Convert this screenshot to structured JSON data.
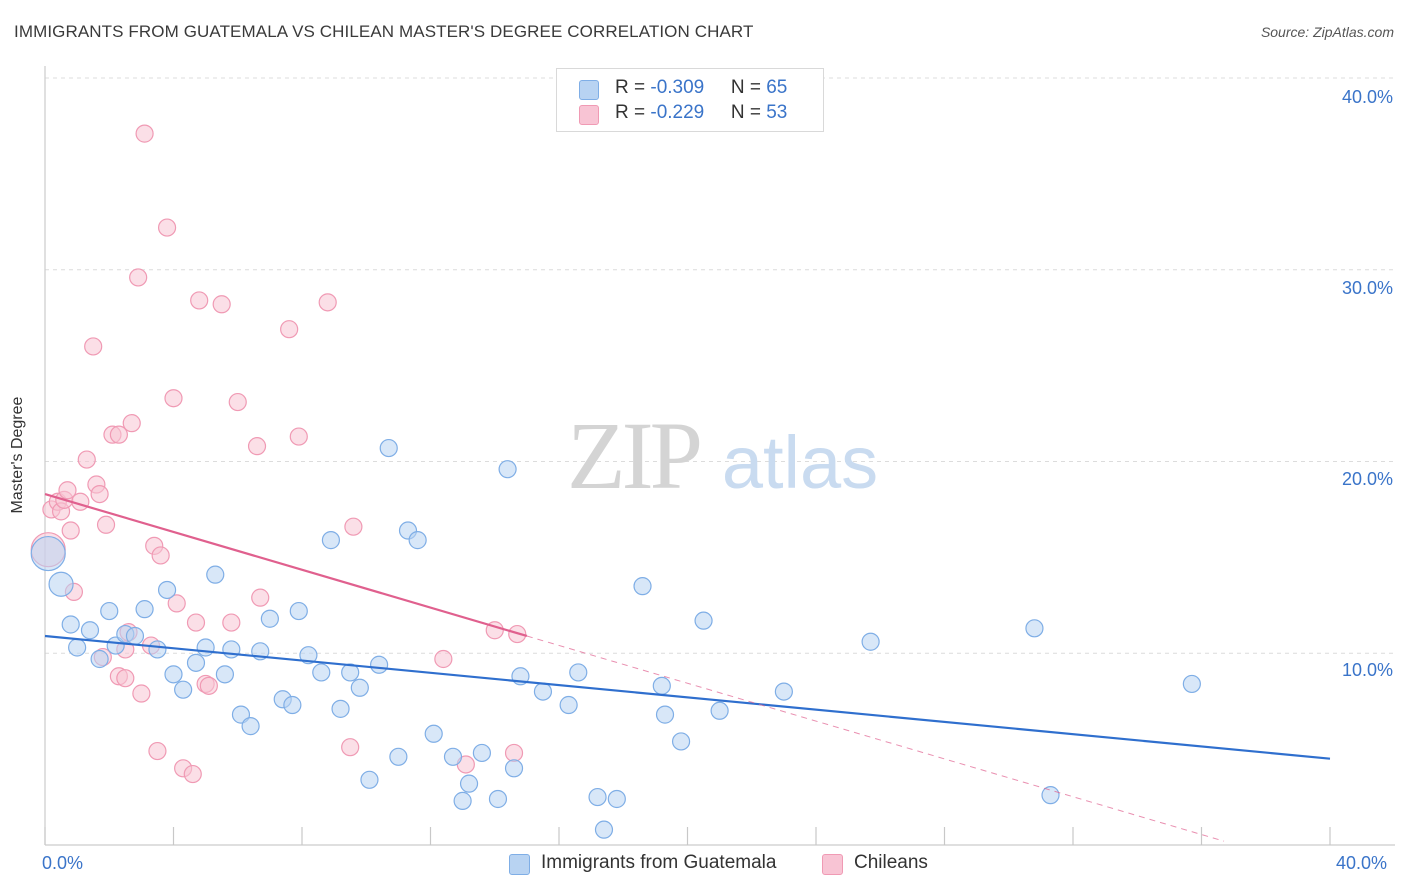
{
  "header": {
    "title": "IMMIGRANTS FROM GUATEMALA VS CHILEAN MASTER'S DEGREE CORRELATION CHART",
    "source": "Source: ZipAtlas.com"
  },
  "watermark": {
    "zip": "ZIP",
    "atlas": "atlas"
  },
  "colors": {
    "blue_fill": "#b8d3f2",
    "blue_stroke": "#7faee6",
    "blue_line": "#2f6fce",
    "pink_fill": "#f8c4d4",
    "pink_stroke": "#f09ab4",
    "pink_line": "#e0608e",
    "axis_text": "#3a74c9"
  },
  "legend": {
    "rows": [
      {
        "r_label": "R = ",
        "r_value": "-0.309",
        "n_label": "N = ",
        "n_value": "65"
      },
      {
        "r_label": "R = ",
        "r_value": "-0.229",
        "n_label": "N = ",
        "n_value": "53"
      }
    ],
    "bottom": [
      "Immigrants from Guatemala",
      "Chileans"
    ]
  },
  "chart_data": {
    "type": "scatter",
    "title": "IMMIGRANTS FROM GUATEMALA VS CHILEAN MASTER'S DEGREE CORRELATION CHART",
    "xlabel": "",
    "ylabel": "Master's Degree",
    "xlim": [
      0,
      40
    ],
    "ylim": [
      0,
      40
    ],
    "x_tick_labels": [
      "0.0%",
      "40.0%"
    ],
    "y_tick_labels": [
      "10.0%",
      "20.0%",
      "30.0%",
      "40.0%"
    ],
    "y_ticks": [
      10,
      20,
      30,
      40
    ],
    "grid": "horizontal dashed",
    "legend_position": "top-center",
    "series": [
      {
        "name": "Immigrants from Guatemala",
        "color": "#b8d3f2",
        "r": -0.309,
        "n": 65,
        "trend": {
          "x": [
            0,
            40
          ],
          "y": [
            10.9,
            4.5
          ]
        },
        "points": [
          [
            0.1,
            15.2,
            "xl"
          ],
          [
            0.5,
            13.6,
            "l"
          ],
          [
            0.8,
            11.5,
            "m"
          ],
          [
            1.0,
            10.3,
            "m"
          ],
          [
            1.4,
            11.2,
            "m"
          ],
          [
            1.7,
            9.7,
            "m"
          ],
          [
            2.0,
            12.2,
            "m"
          ],
          [
            2.2,
            10.4,
            "m"
          ],
          [
            2.5,
            11.0,
            "m"
          ],
          [
            2.8,
            10.9,
            "m"
          ],
          [
            3.1,
            12.3,
            "m"
          ],
          [
            3.5,
            10.2,
            "m"
          ],
          [
            3.8,
            13.3,
            "m"
          ],
          [
            4.0,
            8.9,
            "m"
          ],
          [
            4.3,
            8.1,
            "m"
          ],
          [
            4.7,
            9.5,
            "m"
          ],
          [
            5.0,
            10.3,
            "m"
          ],
          [
            5.3,
            14.1,
            "m"
          ],
          [
            5.6,
            8.9,
            "m"
          ],
          [
            5.8,
            10.2,
            "m"
          ],
          [
            6.1,
            6.8,
            "m"
          ],
          [
            6.4,
            6.2,
            "m"
          ],
          [
            6.7,
            10.1,
            "m"
          ],
          [
            7.0,
            11.8,
            "m"
          ],
          [
            7.4,
            7.6,
            "m"
          ],
          [
            7.7,
            7.3,
            "m"
          ],
          [
            7.9,
            12.2,
            "m"
          ],
          [
            8.2,
            9.9,
            "m"
          ],
          [
            8.6,
            9.0,
            "m"
          ],
          [
            8.9,
            15.9,
            "m"
          ],
          [
            9.2,
            7.1,
            "m"
          ],
          [
            9.5,
            9.0,
            "m"
          ],
          [
            9.8,
            8.2,
            "m"
          ],
          [
            10.1,
            3.4,
            "m"
          ],
          [
            10.4,
            9.4,
            "m"
          ],
          [
            10.7,
            20.7,
            "m"
          ],
          [
            11.0,
            4.6,
            "m"
          ],
          [
            11.3,
            16.4,
            "m"
          ],
          [
            11.6,
            15.9,
            "m"
          ],
          [
            12.1,
            5.8,
            "m"
          ],
          [
            12.7,
            4.6,
            "m"
          ],
          [
            13.0,
            2.3,
            "m"
          ],
          [
            13.2,
            3.2,
            "m"
          ],
          [
            13.6,
            4.8,
            "m"
          ],
          [
            14.1,
            2.4,
            "m"
          ],
          [
            14.4,
            19.6,
            "m"
          ],
          [
            14.6,
            4.0,
            "m"
          ],
          [
            14.8,
            8.8,
            "m"
          ],
          [
            15.5,
            8.0,
            "m"
          ],
          [
            16.3,
            7.3,
            "m"
          ],
          [
            16.6,
            9.0,
            "m"
          ],
          [
            17.2,
            2.5,
            "m"
          ],
          [
            17.4,
            0.8,
            "m"
          ],
          [
            17.8,
            2.4,
            "m"
          ],
          [
            18.6,
            13.5,
            "m"
          ],
          [
            19.2,
            8.3,
            "m"
          ],
          [
            19.3,
            6.8,
            "m"
          ],
          [
            19.8,
            5.4,
            "m"
          ],
          [
            20.5,
            11.7,
            "m"
          ],
          [
            21.0,
            7.0,
            "m"
          ],
          [
            23.0,
            8.0,
            "m"
          ],
          [
            25.7,
            10.6,
            "m"
          ],
          [
            30.8,
            11.3,
            "m"
          ],
          [
            31.3,
            2.6,
            "m"
          ],
          [
            35.7,
            8.4,
            "m"
          ]
        ]
      },
      {
        "name": "Chileans",
        "color": "#f8c4d4",
        "r": -0.229,
        "n": 53,
        "trend": {
          "x": [
            0,
            15.0
          ],
          "y": [
            18.3,
            10.9
          ]
        },
        "trend_extended": {
          "x": [
            15.0,
            36.7
          ],
          "y": [
            10.9,
            0.2
          ]
        },
        "points": [
          [
            0.1,
            15.4,
            "xl"
          ],
          [
            0.2,
            17.5,
            "m"
          ],
          [
            0.4,
            17.9,
            "m"
          ],
          [
            0.5,
            17.4,
            "m"
          ],
          [
            0.6,
            18.0,
            "m"
          ],
          [
            0.7,
            18.5,
            "m"
          ],
          [
            0.8,
            16.4,
            "m"
          ],
          [
            0.9,
            13.2,
            "m"
          ],
          [
            1.1,
            17.9,
            "m"
          ],
          [
            1.3,
            20.1,
            "m"
          ],
          [
            1.5,
            26.0,
            "m"
          ],
          [
            1.6,
            18.8,
            "m"
          ],
          [
            1.7,
            18.3,
            "m"
          ],
          [
            1.8,
            9.8,
            "m"
          ],
          [
            1.9,
            16.7,
            "m"
          ],
          [
            2.1,
            21.4,
            "m"
          ],
          [
            2.3,
            21.4,
            "m"
          ],
          [
            2.3,
            8.8,
            "m"
          ],
          [
            2.5,
            10.2,
            "m"
          ],
          [
            2.5,
            8.7,
            "m"
          ],
          [
            2.6,
            11.1,
            "m"
          ],
          [
            2.7,
            22.0,
            "m"
          ],
          [
            2.9,
            29.6,
            "m"
          ],
          [
            3.0,
            7.9,
            "m"
          ],
          [
            3.1,
            37.1,
            "m"
          ],
          [
            3.3,
            10.4,
            "m"
          ],
          [
            3.4,
            15.6,
            "m"
          ],
          [
            3.5,
            4.9,
            "m"
          ],
          [
            3.6,
            15.1,
            "m"
          ],
          [
            3.8,
            32.2,
            "m"
          ],
          [
            4.0,
            23.3,
            "m"
          ],
          [
            4.1,
            12.6,
            "m"
          ],
          [
            4.3,
            4.0,
            "m"
          ],
          [
            4.6,
            3.7,
            "m"
          ],
          [
            4.7,
            11.6,
            "m"
          ],
          [
            4.8,
            28.4,
            "m"
          ],
          [
            5.0,
            8.4,
            "m"
          ],
          [
            5.1,
            8.3,
            "m"
          ],
          [
            5.5,
            28.2,
            "m"
          ],
          [
            5.8,
            11.6,
            "m"
          ],
          [
            6.0,
            23.1,
            "m"
          ],
          [
            6.6,
            20.8,
            "m"
          ],
          [
            6.7,
            12.9,
            "m"
          ],
          [
            7.6,
            26.9,
            "m"
          ],
          [
            7.9,
            21.3,
            "m"
          ],
          [
            8.8,
            28.3,
            "m"
          ],
          [
            9.5,
            5.1,
            "m"
          ],
          [
            9.6,
            16.6,
            "m"
          ],
          [
            12.4,
            9.7,
            "m"
          ],
          [
            13.1,
            4.2,
            "m"
          ],
          [
            14.0,
            11.2,
            "m"
          ],
          [
            14.6,
            4.8,
            "m"
          ],
          [
            14.7,
            11.0,
            "m"
          ]
        ]
      }
    ]
  }
}
